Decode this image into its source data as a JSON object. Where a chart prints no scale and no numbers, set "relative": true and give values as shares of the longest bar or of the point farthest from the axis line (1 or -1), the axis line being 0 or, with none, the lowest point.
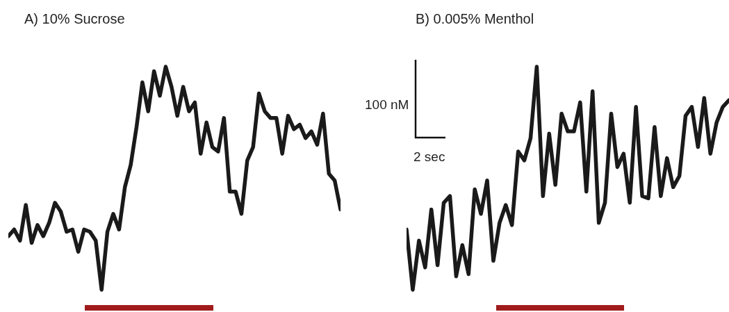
{
  "chart_data": [
    {
      "type": "line",
      "title": "A) 10% Sucrose",
      "relative": true,
      "marker": "none",
      "line_style": "solid",
      "categories": [
        null,
        null,
        null,
        null,
        null,
        null,
        null,
        null,
        null,
        null,
        null,
        null,
        null,
        null,
        null,
        null,
        null,
        null,
        null,
        null,
        null,
        null,
        null,
        null,
        null,
        null,
        null,
        null,
        null,
        null,
        null,
        null,
        null,
        null,
        null,
        null,
        null,
        null,
        null,
        null,
        null,
        null,
        null,
        null,
        null,
        null,
        null,
        null,
        null,
        null,
        null,
        null,
        null,
        null,
        null,
        null,
        null,
        null
      ],
      "series": [
        {
          "color": "#1a1a1a",
          "values": [
            0.24,
            0.27,
            0.22,
            0.38,
            0.21,
            0.29,
            0.24,
            0.3,
            0.39,
            0.35,
            0.26,
            0.27,
            0.17,
            0.27,
            0.26,
            0.22,
            0,
            0.26,
            0.34,
            0.27,
            0.46,
            0.56,
            0.73,
            0.93,
            0.8,
            0.98,
            0.87,
            1,
            0.91,
            0.78,
            0.91,
            0.8,
            0.84,
            0.61,
            0.75,
            0.64,
            0.62,
            0.77,
            0.44,
            0.44,
            0.34,
            0.58,
            0.64,
            0.88,
            0.8,
            0.77,
            0.77,
            0.61,
            0.78,
            0.72,
            0.74,
            0.68,
            0.71,
            0.65,
            0.79,
            0.52,
            0.49,
            0.36
          ]
        }
      ]
    },
    {
      "type": "line",
      "title": "B) 0.005% Menthol",
      "relative": true,
      "marker": "none",
      "line_style": "solid",
      "annotations": [
        "100 nM",
        "2 sec"
      ],
      "categories": [
        null,
        null,
        null,
        null,
        null,
        null,
        null,
        null,
        null,
        null,
        null,
        null,
        null,
        null,
        null,
        null,
        null,
        null,
        null,
        null,
        null,
        null,
        null,
        null,
        null,
        null,
        null,
        null,
        null,
        null,
        null,
        null,
        null,
        null,
        null,
        null,
        null,
        null,
        null,
        null,
        null,
        null,
        null,
        null,
        null,
        null,
        null,
        null,
        null,
        null,
        null,
        null,
        null
      ],
      "series": [
        {
          "color": "#1a1a1a",
          "values": [
            0.27,
            0,
            0.22,
            0.1,
            0.36,
            0.11,
            0.39,
            0.42,
            0.06,
            0.2,
            0.07,
            0.45,
            0.34,
            0.49,
            0.13,
            0.3,
            0.38,
            0.29,
            0.62,
            0.58,
            0.68,
            1,
            0.42,
            0.7,
            0.47,
            0.79,
            0.71,
            0.71,
            0.84,
            0.44,
            0.89,
            0.3,
            0.39,
            0.79,
            0.55,
            0.61,
            0.39,
            0.82,
            0.42,
            0.41,
            0.73,
            0.42,
            0.59,
            0.46,
            0.51,
            0.78,
            0.82,
            0.64,
            0.86,
            0.61,
            0.75,
            0.82,
            0.85
          ]
        }
      ]
    }
  ]
}
